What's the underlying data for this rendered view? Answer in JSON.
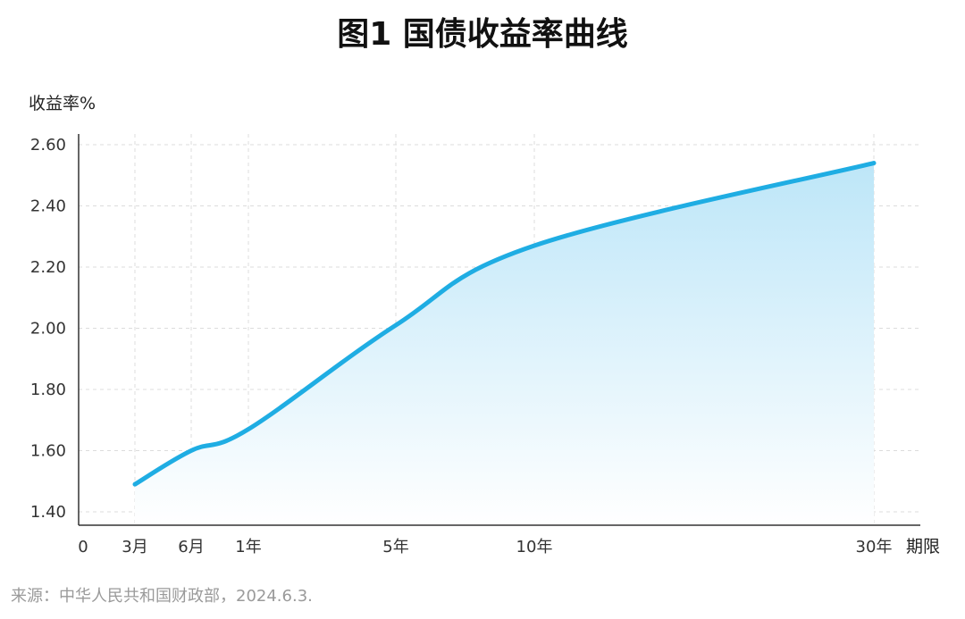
{
  "chart_data": {
    "type": "area",
    "title": "图1 国债收益率曲线",
    "ylabel": "收益率%",
    "xunit": "期限",
    "source": "来源：中华人民共和国财政部，2024.6.3.",
    "ylim": [
      1.4,
      2.6
    ],
    "y_ticks": [
      "1.40",
      "1.60",
      "1.80",
      "2.00",
      "2.20",
      "2.40",
      "2.60"
    ],
    "x_origin_label": "0",
    "x_ticks": [
      {
        "label": "3月",
        "years": 0.25
      },
      {
        "label": "6月",
        "years": 0.5
      },
      {
        "label": "1年",
        "years": 1
      },
      {
        "label": "5年",
        "years": 5
      },
      {
        "label": "10年",
        "years": 10
      },
      {
        "label": "30年",
        "years": 30
      }
    ],
    "series": [
      {
        "values": [
          {
            "x": "3月",
            "y": 1.49
          },
          {
            "x": "6月",
            "y": 1.6
          },
          {
            "x": "1年",
            "y": 1.67
          },
          {
            "x": "5年",
            "y": 2.01
          },
          {
            "x": "10年",
            "y": 2.27
          },
          {
            "x": "30年",
            "y": 2.54
          }
        ]
      }
    ],
    "grid": true,
    "colors": {
      "line": "#1fade3",
      "fill_top": "#bde6f8",
      "fill_bottom": "#ffffff"
    }
  }
}
